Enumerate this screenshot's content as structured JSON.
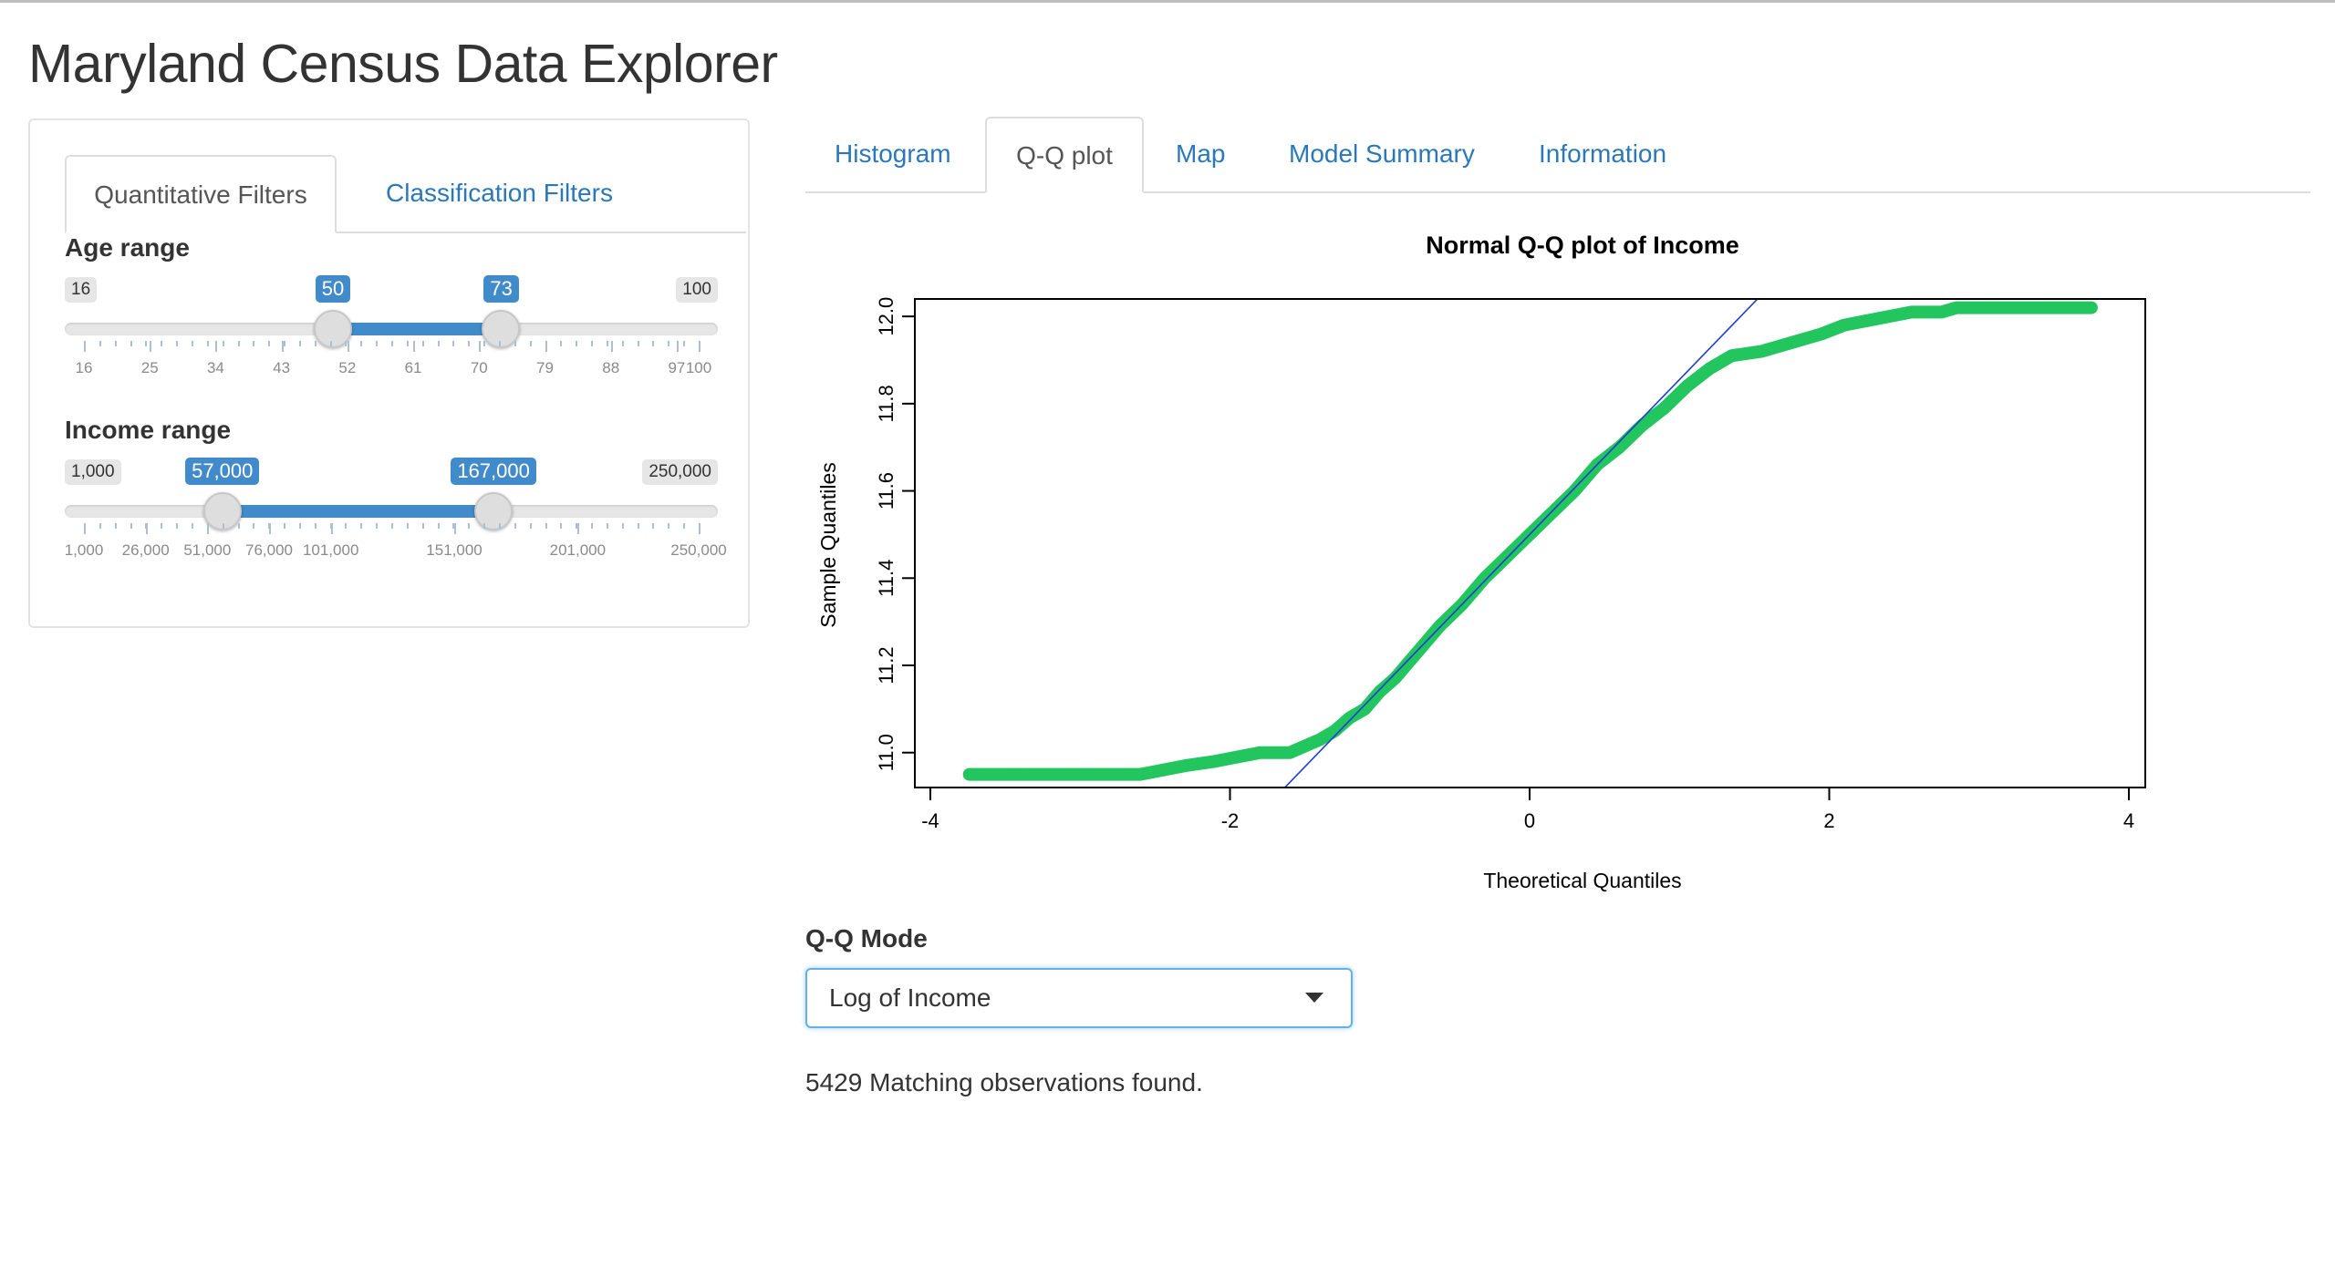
{
  "page": {
    "title": "Maryland Census Data Explorer"
  },
  "sidebar": {
    "tabs": [
      {
        "label": "Quantitative Filters",
        "active": true
      },
      {
        "label": "Classification Filters",
        "active": false
      }
    ],
    "age": {
      "label": "Age range",
      "min": 16,
      "max": 100,
      "low": 50,
      "high": 73,
      "min_label": "16",
      "max_label": "100",
      "low_label": "50",
      "high_label": "73",
      "ticks": [
        "16",
        "25",
        "34",
        "43",
        "52",
        "61",
        "70",
        "79",
        "88",
        "97",
        "100"
      ]
    },
    "income": {
      "label": "Income range",
      "min": 1000,
      "max": 250000,
      "low": 57000,
      "high": 167000,
      "min_label": "1,000",
      "max_label": "250,000",
      "low_label": "57,000",
      "high_label": "167,000",
      "ticks": [
        "1,000",
        "26,000",
        "51,000",
        "76,000",
        "101,000",
        "151,000",
        "201,000",
        "250,000"
      ],
      "tick_values": [
        1000,
        26000,
        51000,
        76000,
        101000,
        151000,
        201000,
        250000
      ]
    }
  },
  "main": {
    "tabs": [
      {
        "label": "Histogram",
        "active": false
      },
      {
        "label": "Q-Q plot",
        "active": true
      },
      {
        "label": "Map",
        "active": false
      },
      {
        "label": "Model Summary",
        "active": false
      },
      {
        "label": "Information",
        "active": false
      }
    ],
    "qq_mode": {
      "label": "Q-Q Mode",
      "selected": "Log of Income"
    },
    "status": "5429 Matching observations found."
  },
  "colors": {
    "accent": "#428bca",
    "link": "#2a78b8",
    "points": "#22c55e",
    "line": "#1f3fcf"
  },
  "chart_data": {
    "type": "scatter",
    "title": "Normal Q-Q plot of Income",
    "xlabel": "Theoretical Quantiles",
    "ylabel": "Sample Quantiles",
    "xlim": [
      -4,
      4
    ],
    "ylim": [
      10.92,
      12.04
    ],
    "xticks": [
      -4,
      -2,
      0,
      2,
      4
    ],
    "yticks": [
      11.0,
      11.2,
      11.4,
      11.6,
      11.8,
      12.0
    ],
    "ytick_labels": [
      "11.0",
      "11.2",
      "11.4",
      "11.6",
      "11.8",
      "12.0"
    ],
    "reference_line": {
      "intercept": 11.5,
      "slope": 0.355
    },
    "series": [
      {
        "marker": "circled-plus",
        "x": [
          -3.74,
          -3.45,
          -3.3,
          -3.2,
          -3.1,
          -3.0,
          -2.9,
          -2.8,
          -2.7,
          -2.6,
          -2.45,
          -2.3,
          -2.1,
          -1.95,
          -1.8,
          -1.6,
          -1.4,
          -1.3,
          -1.2,
          -1.1,
          -1.0,
          -0.9,
          -0.8,
          -0.7,
          -0.6,
          -0.45,
          -0.3,
          -0.15,
          0.0,
          0.15,
          0.3,
          0.45,
          0.6,
          0.75,
          0.9,
          1.05,
          1.2,
          1.35,
          1.55,
          1.75,
          1.95,
          2.1,
          2.25,
          2.4,
          2.55,
          2.75,
          2.85,
          2.95,
          3.05,
          3.15,
          3.25,
          3.4,
          3.55,
          3.75
        ],
        "y": [
          10.95,
          10.95,
          10.95,
          10.95,
          10.95,
          10.95,
          10.95,
          10.95,
          10.95,
          10.95,
          10.96,
          10.97,
          10.98,
          10.99,
          11.0,
          11.0,
          11.03,
          11.05,
          11.08,
          11.1,
          11.14,
          11.17,
          11.21,
          11.25,
          11.29,
          11.34,
          11.4,
          11.45,
          11.5,
          11.55,
          11.6,
          11.66,
          11.7,
          11.75,
          11.79,
          11.84,
          11.88,
          11.91,
          11.92,
          11.94,
          11.96,
          11.98,
          11.99,
          12.0,
          12.01,
          12.01,
          12.02,
          12.02,
          12.02,
          12.02,
          12.02,
          12.02,
          12.02,
          12.02
        ]
      }
    ]
  }
}
